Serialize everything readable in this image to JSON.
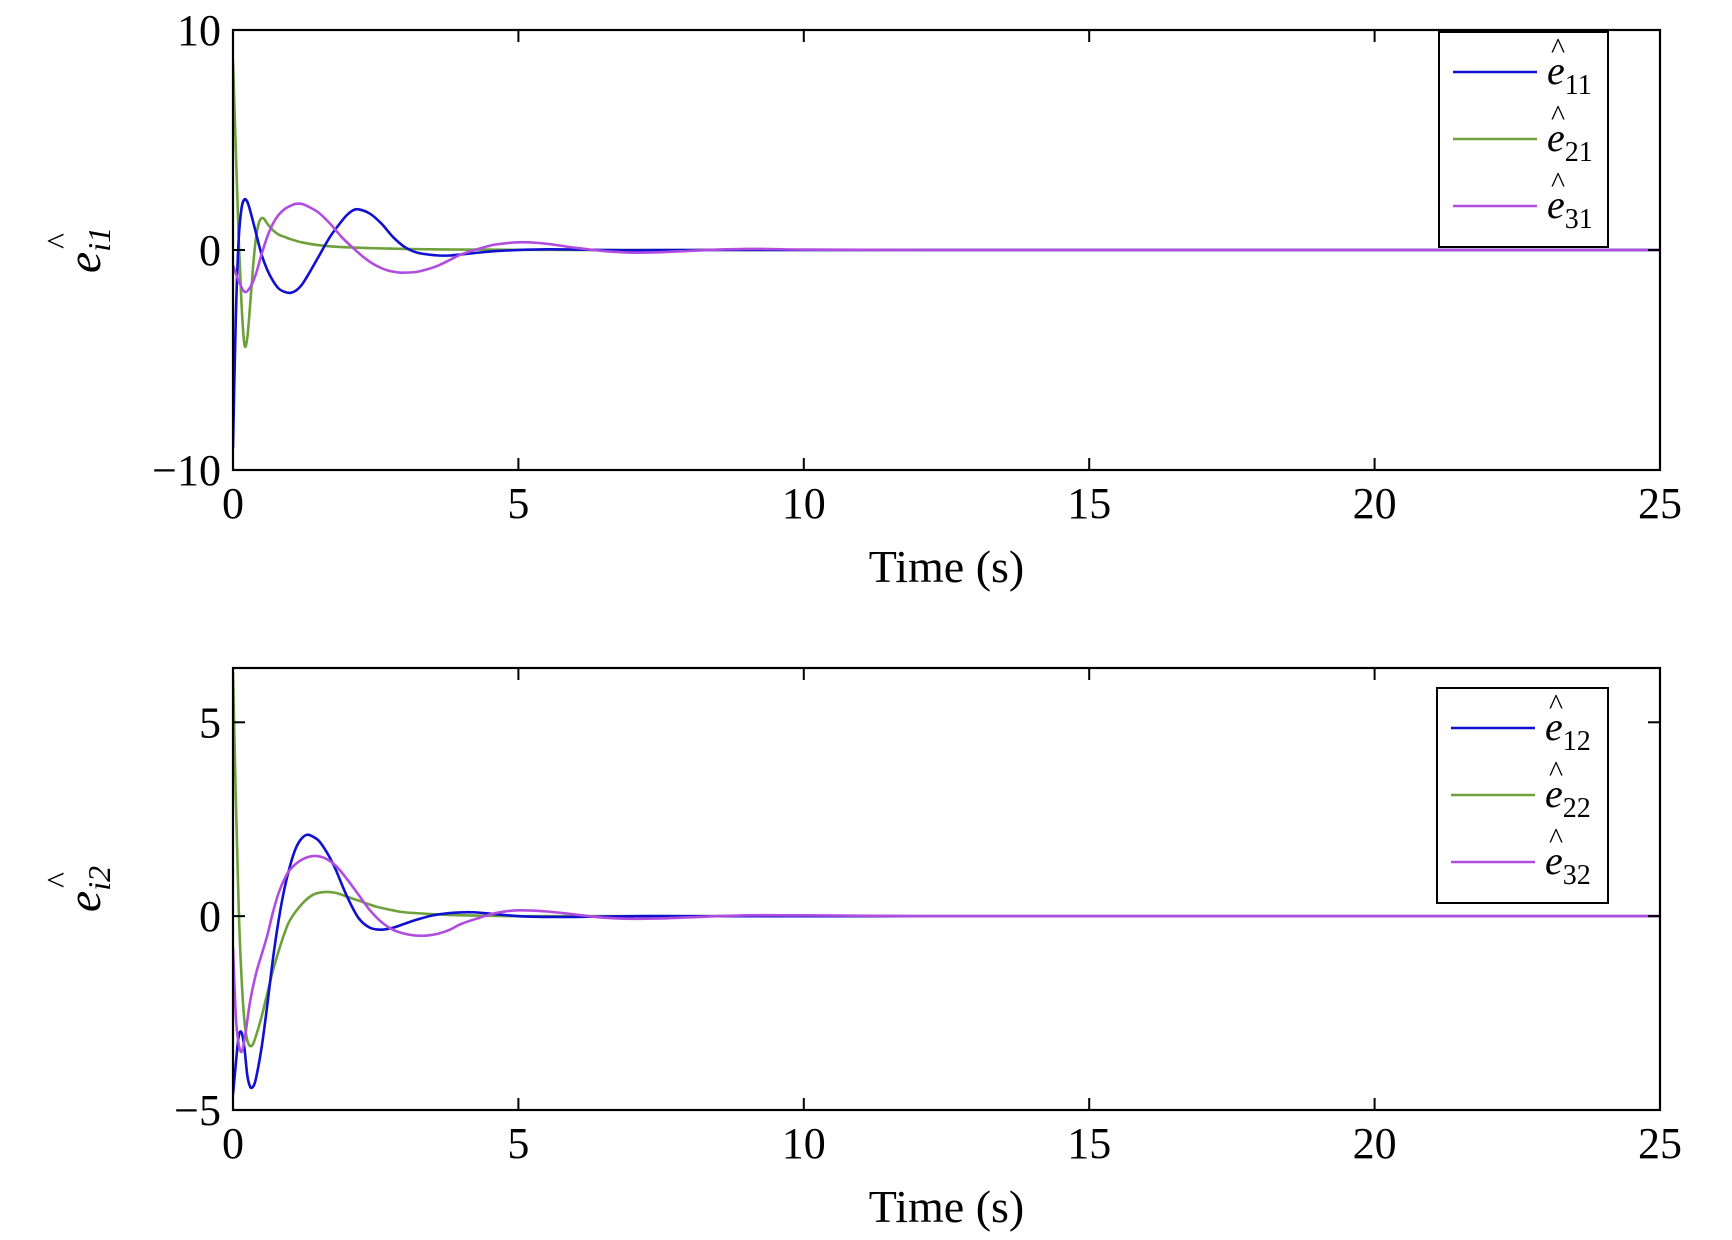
{
  "chart_data": [
    {
      "type": "line",
      "xlabel": "Time (s)",
      "ylabel": {
        "base": "e",
        "hat": "^",
        "sub": "i1"
      },
      "xlim": [
        0,
        25
      ],
      "ylim": [
        -10,
        10
      ],
      "xticks": [
        0,
        5,
        10,
        15,
        20,
        25
      ],
      "yticks": [
        -10,
        0,
        10
      ],
      "ytick_labels": [
        "−10",
        "0",
        "10"
      ],
      "xtick_labels": [
        "0",
        "5",
        "10",
        "15",
        "20",
        "25"
      ],
      "grid": false,
      "legend_position": "top-right",
      "series": [
        {
          "name": "ê11",
          "legend": {
            "base": "e",
            "hat": "^",
            "sub": "11"
          },
          "color": "#1010d0",
          "x": [
            0,
            0.05,
            0.1,
            0.15,
            0.2,
            0.25,
            0.3,
            0.4,
            0.5,
            0.6,
            0.7,
            0.8,
            0.9,
            1.0,
            1.1,
            1.2,
            1.3,
            1.5,
            1.7,
            1.9,
            2.0,
            2.1,
            2.2,
            2.4,
            2.6,
            2.8,
            3.0,
            3.2,
            3.4,
            3.6,
            3.8,
            4.0,
            4.3,
            4.6,
            5.0,
            5.5,
            6.0,
            6.5,
            7.0,
            8.0,
            9.0,
            10.0,
            12.0,
            15.0,
            20.0,
            25.0
          ],
          "y": [
            -9,
            -3,
            0.5,
            1.9,
            2.3,
            2.2,
            1.8,
            0.8,
            -0.2,
            -0.9,
            -1.4,
            -1.75,
            -1.9,
            -1.95,
            -1.85,
            -1.6,
            -1.2,
            -0.3,
            0.6,
            1.3,
            1.6,
            1.8,
            1.85,
            1.65,
            1.2,
            0.6,
            0.15,
            -0.1,
            -0.2,
            -0.25,
            -0.25,
            -0.2,
            -0.12,
            -0.05,
            0,
            0.03,
            0.02,
            0,
            -0.01,
            0,
            0,
            0,
            0,
            0,
            0,
            0
          ]
        },
        {
          "name": "ê21",
          "legend": {
            "base": "e",
            "hat": "^",
            "sub": "21"
          },
          "color": "#6ea13c",
          "x": [
            0,
            0.05,
            0.1,
            0.15,
            0.2,
            0.25,
            0.3,
            0.35,
            0.4,
            0.45,
            0.5,
            0.55,
            0.6,
            0.7,
            0.8,
            0.9,
            1.0,
            1.2,
            1.5,
            2.0,
            2.5,
            3.0,
            3.5,
            4.0,
            5.0,
            6.0,
            8.0,
            10.0,
            15.0,
            20.0,
            25.0
          ],
          "y": [
            8.6,
            4.5,
            0.5,
            -2.5,
            -4.3,
            -4.0,
            -2.5,
            -0.8,
            0.5,
            1.2,
            1.45,
            1.4,
            1.2,
            0.9,
            0.7,
            0.6,
            0.5,
            0.35,
            0.22,
            0.12,
            0.08,
            0.05,
            0.03,
            0.02,
            0.01,
            0,
            0,
            0,
            0,
            0,
            0
          ]
        },
        {
          "name": "ê31",
          "legend": {
            "base": "e",
            "hat": "^",
            "sub": "31"
          },
          "color": "#b04de0",
          "x": [
            0,
            0.1,
            0.2,
            0.3,
            0.4,
            0.5,
            0.6,
            0.7,
            0.8,
            0.9,
            1.0,
            1.1,
            1.2,
            1.3,
            1.5,
            1.7,
            1.9,
            2.1,
            2.3,
            2.5,
            2.7,
            2.9,
            3.0,
            3.2,
            3.4,
            3.6,
            3.8,
            4.0,
            4.3,
            4.6,
            5.0,
            5.3,
            5.6,
            6.0,
            6.5,
            7.0,
            7.5,
            8.0,
            8.5,
            9.0,
            9.5,
            10.0,
            12.0,
            15.0,
            20.0,
            25.0
          ],
          "y": [
            -0.7,
            -1.4,
            -1.9,
            -1.7,
            -1.1,
            -0.2,
            0.6,
            1.2,
            1.6,
            1.85,
            2.0,
            2.1,
            2.1,
            2.0,
            1.7,
            1.2,
            0.6,
            0.1,
            -0.35,
            -0.7,
            -0.92,
            -1.02,
            -1.03,
            -1.0,
            -0.88,
            -0.7,
            -0.45,
            -0.2,
            0.05,
            0.25,
            0.35,
            0.33,
            0.25,
            0.1,
            -0.05,
            -0.12,
            -0.1,
            -0.04,
            0.02,
            0.05,
            0.04,
            0.02,
            0,
            0,
            0,
            0
          ]
        }
      ]
    },
    {
      "type": "line",
      "xlabel": "Time (s)",
      "ylabel": {
        "base": "e",
        "hat": "^",
        "sub": "i2"
      },
      "xlim": [
        0,
        25
      ],
      "ylim": [
        -5,
        6.4
      ],
      "xticks": [
        0,
        5,
        10,
        15,
        20,
        25
      ],
      "yticks": [
        -5,
        0,
        5
      ],
      "ytick_labels": [
        "−5",
        "0",
        "5"
      ],
      "xtick_labels": [
        "0",
        "5",
        "10",
        "15",
        "20",
        "25"
      ],
      "grid": false,
      "legend_position": "top-right",
      "series": [
        {
          "name": "ê12",
          "legend": {
            "base": "e",
            "hat": "^",
            "sub": "12"
          },
          "color": "#1010d0",
          "x": [
            0,
            0.05,
            0.1,
            0.15,
            0.2,
            0.25,
            0.3,
            0.35,
            0.4,
            0.5,
            0.6,
            0.7,
            0.8,
            0.9,
            1.0,
            1.1,
            1.2,
            1.3,
            1.4,
            1.5,
            1.6,
            1.7,
            1.8,
            2.0,
            2.2,
            2.4,
            2.6,
            2.8,
            3.0,
            3.2,
            3.5,
            3.8,
            4.2,
            4.6,
            5.0,
            5.5,
            6.0,
            7.0,
            8.0,
            10.0,
            15.0,
            20.0,
            25.0
          ],
          "y": [
            -4.6,
            -3.8,
            -3.1,
            -3.0,
            -3.4,
            -4.1,
            -4.4,
            -4.4,
            -4.2,
            -3.4,
            -2.3,
            -1.1,
            -0.1,
            0.7,
            1.3,
            1.75,
            2.0,
            2.1,
            2.05,
            1.95,
            1.75,
            1.5,
            1.2,
            0.5,
            -0.05,
            -0.3,
            -0.35,
            -0.3,
            -0.2,
            -0.1,
            0.02,
            0.08,
            0.1,
            0.05,
            0,
            -0.02,
            -0.02,
            0,
            0,
            0,
            0,
            0,
            0
          ]
        },
        {
          "name": "ê22",
          "legend": {
            "base": "e",
            "hat": "^",
            "sub": "22"
          },
          "color": "#6ea13c",
          "x": [
            0,
            0.05,
            0.1,
            0.15,
            0.2,
            0.25,
            0.3,
            0.35,
            0.4,
            0.5,
            0.6,
            0.7,
            0.8,
            0.9,
            1.0,
            1.2,
            1.4,
            1.6,
            1.8,
            2.0,
            2.2,
            2.5,
            2.8,
            3.0,
            3.5,
            4.0,
            5.0,
            6.0,
            8.0,
            10.0,
            15.0,
            20.0,
            25.0
          ],
          "y": [
            6.3,
            3.0,
            0.2,
            -1.6,
            -2.7,
            -3.2,
            -3.35,
            -3.3,
            -3.1,
            -2.6,
            -2.0,
            -1.4,
            -0.9,
            -0.45,
            -0.1,
            0.3,
            0.55,
            0.62,
            0.6,
            0.5,
            0.4,
            0.25,
            0.15,
            0.1,
            0.05,
            0.02,
            0,
            0,
            0,
            0,
            0,
            0,
            0
          ]
        },
        {
          "name": "ê32",
          "legend": {
            "base": "e",
            "hat": "^",
            "sub": "32"
          },
          "color": "#b04de0",
          "x": [
            0,
            0.05,
            0.1,
            0.15,
            0.2,
            0.25,
            0.3,
            0.4,
            0.5,
            0.6,
            0.7,
            0.8,
            0.9,
            1.0,
            1.2,
            1.4,
            1.6,
            1.8,
            2.0,
            2.2,
            2.4,
            2.6,
            2.8,
            3.0,
            3.2,
            3.4,
            3.6,
            3.8,
            4.0,
            4.3,
            4.6,
            5.0,
            5.5,
            6.0,
            6.5,
            7.0,
            7.5,
            8.0,
            9.0,
            10.0,
            12.0,
            15.0,
            20.0,
            25.0
          ],
          "y": [
            -0.8,
            -2.6,
            -3.3,
            -3.5,
            -3.2,
            -2.7,
            -2.2,
            -1.5,
            -1.0,
            -0.5,
            0.1,
            0.6,
            0.95,
            1.2,
            1.45,
            1.55,
            1.5,
            1.3,
            0.95,
            0.55,
            0.15,
            -0.15,
            -0.35,
            -0.45,
            -0.5,
            -0.5,
            -0.45,
            -0.35,
            -0.2,
            -0.05,
            0.08,
            0.15,
            0.12,
            0.04,
            -0.04,
            -0.07,
            -0.06,
            -0.03,
            0.02,
            0.02,
            0,
            0,
            0,
            0
          ]
        }
      ]
    }
  ]
}
